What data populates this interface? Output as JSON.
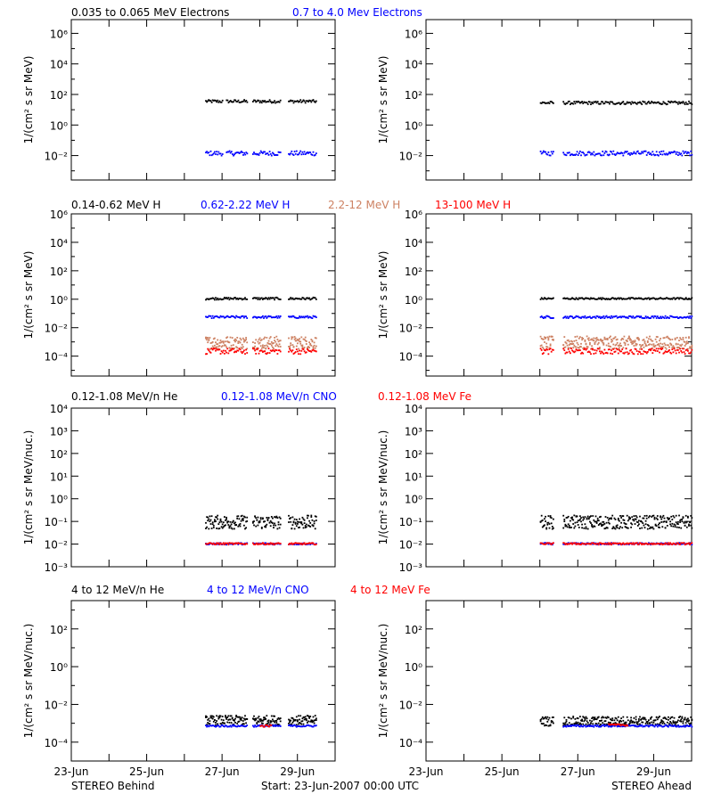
{
  "footer": {
    "left": "STEREO Behind",
    "center": "Start: 23-Jun-2007 00:00 UTC",
    "right": "STEREO Ahead"
  },
  "colors": {
    "black": "#000000",
    "blue": "#0000ff",
    "salmon": "#cd8162",
    "red": "#ff0000"
  },
  "chart_data": [
    {
      "type": "scatter",
      "panel": "electrons",
      "ylabel": "1/(cm² s sr MeV)",
      "yscale": "log",
      "ylim_exp": [
        -3.6,
        6.9
      ],
      "ytick_exp": [
        -2,
        0,
        2,
        4,
        6
      ],
      "xlim_days": [
        0,
        7
      ],
      "x_ticklabels": [
        "23-Jun",
        "25-Jun",
        "27-Jun",
        "29-Jun"
      ],
      "legend": [
        {
          "label": "0.035 to 0.065 MeV Electrons",
          "color": "#000000"
        },
        {
          "label": "0.7 to 4.0 Mev Electrons",
          "color": "#0000ff"
        }
      ],
      "behind": {
        "series": [
          {
            "name": "0.035 to 0.065 MeV Electrons",
            "color": "#000000",
            "level_exp": 1.6,
            "jitter": 0.1,
            "segments": [
              [
                3.55,
                4.0
              ],
              [
                4.1,
                4.65
              ],
              [
                4.8,
                5.55
              ],
              [
                5.75,
                6.5
              ]
            ]
          },
          {
            "name": "0.7 to 4.0 Mev Electrons",
            "color": "#0000ff",
            "level_exp": -1.8,
            "jitter": 0.15,
            "segments": [
              [
                3.55,
                4.0
              ],
              [
                4.1,
                4.65
              ],
              [
                4.8,
                5.55
              ],
              [
                5.75,
                6.5
              ]
            ]
          }
        ]
      },
      "ahead": {
        "series": [
          {
            "name": "0.035 to 0.065 MeV Electrons",
            "color": "#000000",
            "level_exp": 1.5,
            "jitter": 0.1,
            "segments": [
              [
                3.0,
                3.35
              ],
              [
                3.6,
                7.0
              ]
            ]
          },
          {
            "name": "0.7 to 4.0 Mev Electrons",
            "color": "#0000ff",
            "level_exp": -1.8,
            "jitter": 0.15,
            "segments": [
              [
                3.0,
                3.35
              ],
              [
                3.6,
                7.0
              ]
            ]
          }
        ]
      }
    },
    {
      "type": "scatter",
      "panel": "protons",
      "ylabel": "1/(cm² s sr MeV)",
      "yscale": "log",
      "ylim_exp": [
        -5.4,
        6.0
      ],
      "ytick_exp": [
        -4,
        -2,
        0,
        2,
        4,
        6
      ],
      "xlim_days": [
        0,
        7
      ],
      "x_ticklabels": [
        "23-Jun",
        "25-Jun",
        "27-Jun",
        "29-Jun"
      ],
      "legend": [
        {
          "label": "0.14-0.62 MeV H",
          "color": "#000000"
        },
        {
          "label": "0.62-2.22 MeV H",
          "color": "#0000ff"
        },
        {
          "label": "2.2-12 MeV H",
          "color": "#cd8162"
        },
        {
          "label": "13-100 MeV H",
          "color": "#ff0000"
        }
      ],
      "behind": {
        "series": [
          {
            "name": "0.14-0.62 MeV H",
            "color": "#000000",
            "level_exp": 0.1,
            "jitter": 0.08,
            "segments": [
              [
                3.55,
                4.65
              ],
              [
                4.8,
                5.55
              ],
              [
                5.75,
                6.5
              ]
            ]
          },
          {
            "name": "0.62-2.22 MeV H",
            "color": "#0000ff",
            "level_exp": -1.2,
            "jitter": 0.08,
            "segments": [
              [
                3.55,
                4.65
              ],
              [
                4.8,
                5.55
              ],
              [
                5.75,
                6.5
              ]
            ]
          },
          {
            "name": "2.2-12 MeV H",
            "color": "#cd8162",
            "level_exp": -3.0,
            "jitter": 0.45,
            "segments": [
              [
                3.55,
                4.65
              ],
              [
                4.8,
                5.55
              ],
              [
                5.75,
                6.5
              ]
            ]
          },
          {
            "name": "13-100 MeV H",
            "color": "#ff0000",
            "level_exp": -3.6,
            "jitter": 0.2,
            "segments": [
              [
                3.55,
                4.65
              ],
              [
                4.8,
                5.55
              ],
              [
                5.75,
                6.5
              ]
            ]
          }
        ]
      },
      "ahead": {
        "series": [
          {
            "name": "0.14-0.62 MeV H",
            "color": "#000000",
            "level_exp": 0.1,
            "jitter": 0.06,
            "segments": [
              [
                3.0,
                3.35
              ],
              [
                3.6,
                7.0
              ]
            ]
          },
          {
            "name": "0.62-2.22 MeV H",
            "color": "#0000ff",
            "level_exp": -1.2,
            "jitter": 0.08,
            "segments": [
              [
                3.0,
                3.35
              ],
              [
                3.6,
                7.0
              ]
            ]
          },
          {
            "name": "2.2-12 MeV H",
            "color": "#cd8162",
            "level_exp": -3.0,
            "jitter": 0.45,
            "segments": [
              [
                3.0,
                3.35
              ],
              [
                3.6,
                7.0
              ]
            ]
          },
          {
            "name": "13-100 MeV H",
            "color": "#ff0000",
            "level_exp": -3.6,
            "jitter": 0.2,
            "segments": [
              [
                3.0,
                3.35
              ],
              [
                3.6,
                7.0
              ]
            ]
          }
        ]
      }
    },
    {
      "type": "scatter",
      "panel": "heavy-ions-low",
      "ylabel": "1/(cm² s sr MeV/nuc.)",
      "yscale": "log",
      "ylim_exp": [
        -3.0,
        4.0
      ],
      "ytick_exp": [
        -3,
        -2,
        -1,
        0,
        1,
        2,
        3,
        4
      ],
      "xlim_days": [
        0,
        7
      ],
      "x_ticklabels": [
        "23-Jun",
        "25-Jun",
        "27-Jun",
        "29-Jun"
      ],
      "legend": [
        {
          "label": "0.12-1.08 MeV/n He",
          "color": "#000000"
        },
        {
          "label": "0.12-1.08 MeV/n CNO",
          "color": "#0000ff"
        },
        {
          "label": "0.12-1.08 MeV Fe",
          "color": "#ff0000"
        }
      ],
      "behind": {
        "series": [
          {
            "name": "0.12-1.08 MeV/n He",
            "color": "#000000",
            "level_exp": -1.0,
            "jitter": 0.3,
            "segments": [
              [
                3.55,
                4.65
              ],
              [
                4.8,
                5.55
              ],
              [
                5.75,
                6.5
              ]
            ]
          },
          {
            "name": "0.12-1.08 MeV/n CNO",
            "color": "#0000ff",
            "level_exp": -1.95,
            "jitter": 0.04,
            "segments": [
              [
                3.55,
                4.65
              ],
              [
                4.8,
                5.55
              ],
              [
                5.75,
                6.5
              ]
            ]
          },
          {
            "name": "0.12-1.08 MeV Fe",
            "color": "#ff0000",
            "level_exp": -1.95,
            "jitter": 0.04,
            "segments": [
              [
                3.55,
                4.65
              ],
              [
                4.8,
                5.55
              ],
              [
                5.75,
                6.5
              ]
            ]
          }
        ]
      },
      "ahead": {
        "series": [
          {
            "name": "0.12-1.08 MeV/n He",
            "color": "#000000",
            "level_exp": -1.0,
            "jitter": 0.3,
            "segments": [
              [
                3.0,
                3.35
              ],
              [
                3.6,
                7.0
              ]
            ]
          },
          {
            "name": "0.12-1.08 MeV/n CNO",
            "color": "#0000ff",
            "level_exp": -1.95,
            "jitter": 0.04,
            "segments": [
              [
                3.0,
                3.35
              ],
              [
                3.6,
                7.0
              ]
            ]
          },
          {
            "name": "0.12-1.08 MeV Fe",
            "color": "#ff0000",
            "level_exp": -1.95,
            "jitter": 0.04,
            "segments": [
              [
                3.0,
                3.35
              ],
              [
                3.6,
                7.0
              ]
            ]
          }
        ]
      }
    },
    {
      "type": "scatter",
      "panel": "heavy-ions-high",
      "ylabel": "1/(cm² s sr MeV/nuc.)",
      "yscale": "log",
      "ylim_exp": [
        -5.0,
        3.5
      ],
      "ytick_exp": [
        -4,
        -2,
        0,
        2
      ],
      "xlim_days": [
        0,
        7
      ],
      "x_ticklabels": [
        "23-Jun",
        "25-Jun",
        "27-Jun",
        "29-Jun"
      ],
      "legend": [
        {
          "label": "4 to 12 MeV/n He",
          "color": "#000000"
        },
        {
          "label": "4 to 12 MeV/n CNO",
          "color": "#0000ff"
        },
        {
          "label": "4 to 12 MeV Fe",
          "color": "#ff0000"
        }
      ],
      "behind": {
        "series": [
          {
            "name": "4 to 12 MeV/n He",
            "color": "#000000",
            "level_exp": -2.8,
            "jitter": 0.25,
            "segments": [
              [
                3.55,
                4.65
              ],
              [
                4.8,
                5.55
              ],
              [
                5.75,
                6.5
              ]
            ]
          },
          {
            "name": "4 to 12 MeV/n CNO",
            "color": "#0000ff",
            "level_exp": -3.1,
            "jitter": 0.05,
            "segments": [
              [
                3.55,
                4.65
              ],
              [
                4.8,
                5.55
              ],
              [
                5.75,
                6.5
              ]
            ]
          },
          {
            "name": "4 to 12 MeV Fe",
            "color": "#ff0000",
            "level_exp": -3.1,
            "jitter": 0.05,
            "segments": [
              [
                5.0,
                5.3
              ]
            ]
          }
        ]
      },
      "ahead": {
        "series": [
          {
            "name": "4 to 12 MeV/n He",
            "color": "#000000",
            "level_exp": -2.85,
            "jitter": 0.25,
            "segments": [
              [
                3.0,
                3.35
              ],
              [
                3.6,
                7.0
              ]
            ]
          },
          {
            "name": "4 to 12 MeV/n CNO",
            "color": "#0000ff",
            "level_exp": -3.1,
            "jitter": 0.05,
            "segments": [
              [
                3.6,
                7.0
              ]
            ]
          },
          {
            "name": "4 to 12 MeV Fe",
            "color": "#ff0000",
            "level_exp": -3.05,
            "jitter": 0.05,
            "segments": [
              [
                4.8,
                5.3
              ]
            ]
          }
        ]
      }
    }
  ]
}
